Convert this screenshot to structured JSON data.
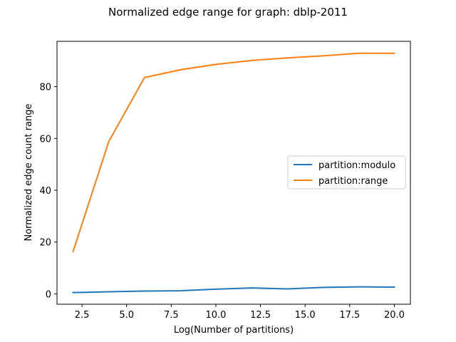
{
  "chart_data": {
    "type": "line",
    "title": "Normalized edge range for graph: dblp-2011",
    "xlabel": "Log(Number of partitions)",
    "ylabel": "Normalized edge count range",
    "xlim": [
      1.1,
      20.9
    ],
    "ylim": [
      -4.0,
      97.5
    ],
    "x_ticks": [
      2.5,
      5.0,
      7.5,
      10.0,
      12.5,
      15.0,
      17.5,
      20.0
    ],
    "x_tick_labels": [
      "2.5",
      "5.0",
      "7.5",
      "10.0",
      "12.5",
      "15.0",
      "17.5",
      "20.0"
    ],
    "y_ticks": [
      0,
      20,
      40,
      60,
      80
    ],
    "y_tick_labels": [
      "0",
      "20",
      "40",
      "60",
      "80"
    ],
    "grid": false,
    "legend_position": "center-right",
    "x": [
      2,
      4,
      6,
      8,
      10,
      12,
      14,
      16,
      18,
      20
    ],
    "series": [
      {
        "name": "partition:modulo",
        "color": "#1f77b4",
        "values": [
          0.5,
          0.8,
          1.1,
          1.2,
          1.8,
          2.3,
          1.9,
          2.5,
          2.7,
          2.6
        ]
      },
      {
        "name": "partition:range",
        "color": "#ff7f0e",
        "values": [
          16.3,
          58.8,
          83.5,
          86.5,
          88.6,
          90.1,
          91.1,
          91.9,
          92.9,
          92.9
        ]
      }
    ]
  }
}
